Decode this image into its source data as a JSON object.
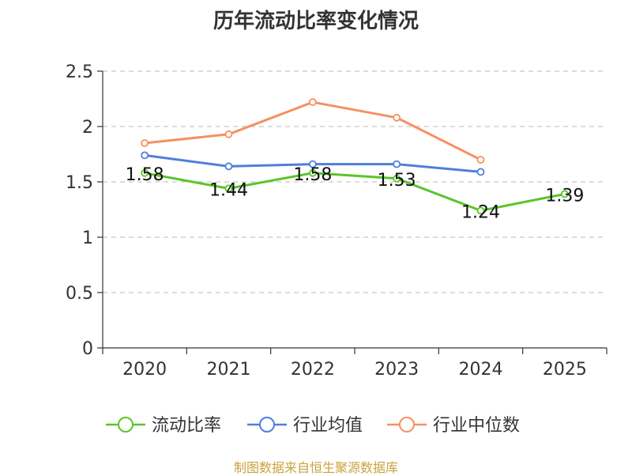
{
  "chart_data": {
    "type": "line",
    "title": "历年流动比率变化情况",
    "categories": [
      "2020",
      "2021",
      "2022",
      "2023",
      "2024",
      "2025"
    ],
    "series": [
      {
        "name": "流动比率",
        "color": "#5cc42b",
        "values": [
          1.58,
          1.44,
          1.58,
          1.53,
          1.24,
          1.39
        ],
        "labels": [
          "1.58",
          "1.44",
          "1.58",
          "1.53",
          "1.24",
          "1.39"
        ]
      },
      {
        "name": "行业均值",
        "color": "#4f7fdb",
        "values": [
          1.74,
          1.64,
          1.66,
          1.66,
          1.59,
          null
        ]
      },
      {
        "name": "行业中位数",
        "color": "#f59160",
        "values": [
          1.85,
          1.93,
          2.22,
          2.08,
          1.7,
          null
        ]
      }
    ],
    "ylim": [
      0,
      2.5
    ],
    "yticks": [
      "0",
      "0.5",
      "1",
      "1.5",
      "2",
      "2.5"
    ],
    "xlabel": "",
    "ylabel": "",
    "grid": true,
    "legend_position": "bottom"
  },
  "source": "制图数据来自恒生聚源数据库"
}
